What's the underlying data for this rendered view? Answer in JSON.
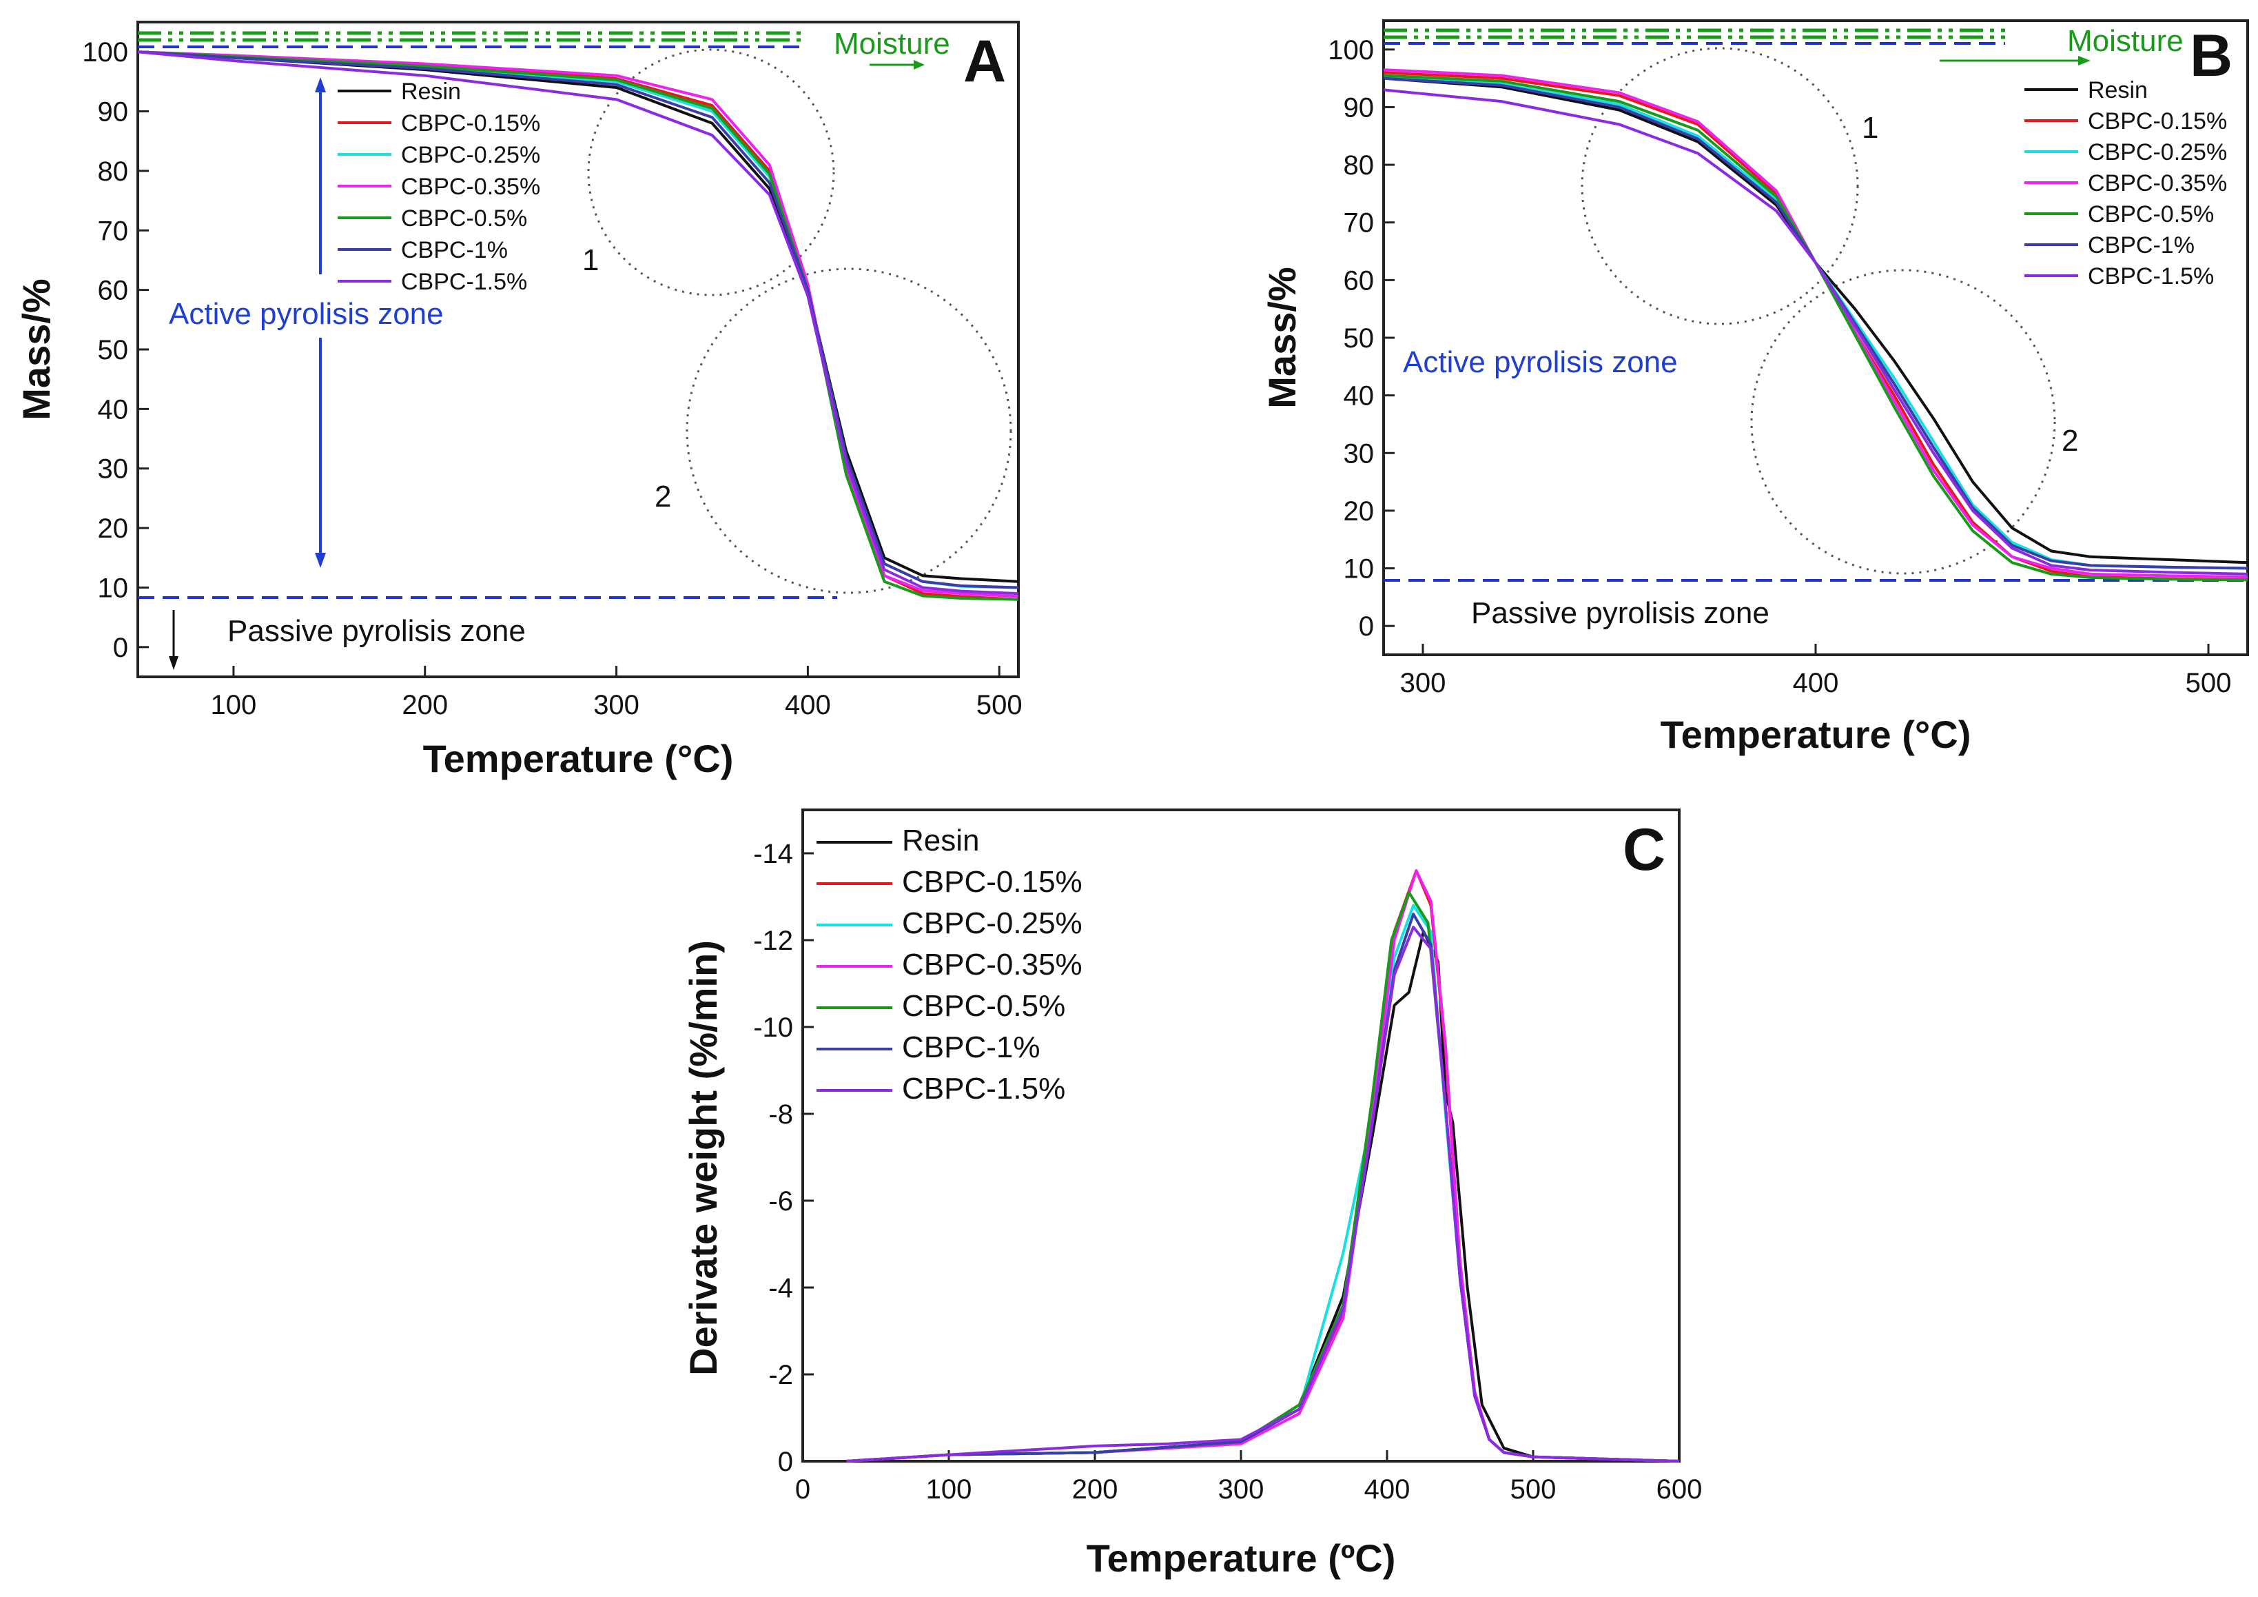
{
  "series_style": [
    {
      "name": "Resin",
      "color": "#111111"
    },
    {
      "name": "CBPC-0.15%",
      "color": "#e41a1c"
    },
    {
      "name": "CBPC-0.25%",
      "color": "#19e0e0"
    },
    {
      "name": "CBPC-0.35%",
      "color": "#ee22ee"
    },
    {
      "name": "CBPC-0.5%",
      "color": "#1a9a1a"
    },
    {
      "name": "CBPC-1%",
      "color": "#3a3fa8"
    },
    {
      "name": "CBPC-1.5%",
      "color": "#8a2be2"
    }
  ],
  "chart_data": [
    {
      "id": "A",
      "type": "line",
      "panel_label": "A",
      "xlabel": "Temperature (°C)",
      "ylabel": "Mass/%",
      "xlim": [
        50,
        510
      ],
      "ylim": [
        -5,
        105
      ],
      "xticks": [
        100,
        200,
        300,
        400,
        500
      ],
      "yticks": [
        0,
        10,
        20,
        30,
        40,
        50,
        60,
        70,
        80,
        90,
        100
      ],
      "legend_position": "top-left",
      "annotations": {
        "moisture": "Moisture",
        "active_zone": "Active pyrolisis zone",
        "passive_zone": "Passive pyrolisis zone",
        "circle_1": "1",
        "circle_2": "2"
      },
      "series": [
        {
          "name": "Resin",
          "x": [
            50,
            100,
            200,
            300,
            350,
            380,
            400,
            420,
            440,
            460,
            480,
            510
          ],
          "y": [
            100,
            99,
            97,
            94,
            88,
            77,
            60,
            33,
            15,
            12,
            11.5,
            11
          ]
        },
        {
          "name": "CBPC-0.15%",
          "x": [
            50,
            100,
            200,
            300,
            350,
            380,
            400,
            420,
            440,
            460,
            480,
            510
          ],
          "y": [
            100,
            99.3,
            97.8,
            95.5,
            91,
            80,
            60,
            30,
            12,
            9,
            8.5,
            8
          ]
        },
        {
          "name": "CBPC-0.25%",
          "x": [
            50,
            100,
            200,
            300,
            350,
            380,
            400,
            420,
            440,
            460,
            480,
            510
          ],
          "y": [
            100,
            99.2,
            97.5,
            95,
            90,
            79,
            60,
            32,
            14,
            11,
            10.2,
            10
          ]
        },
        {
          "name": "CBPC-0.35%",
          "x": [
            50,
            100,
            200,
            300,
            350,
            380,
            400,
            420,
            440,
            460,
            480,
            510
          ],
          "y": [
            100,
            99.4,
            98,
            96,
            92,
            81,
            61,
            30,
            12,
            9.5,
            9,
            8.5
          ]
        },
        {
          "name": "CBPC-0.5%",
          "x": [
            50,
            100,
            200,
            300,
            350,
            380,
            400,
            420,
            440,
            460,
            480,
            510
          ],
          "y": [
            100,
            99.2,
            97.6,
            95.3,
            90.5,
            79.5,
            60,
            29,
            11,
            8.6,
            8.2,
            8
          ]
        },
        {
          "name": "CBPC-1%",
          "x": [
            50,
            100,
            200,
            300,
            350,
            380,
            400,
            420,
            440,
            460,
            480,
            510
          ],
          "y": [
            100,
            99,
            97.2,
            94.5,
            89,
            78,
            60,
            32,
            14,
            11,
            10.3,
            10
          ]
        },
        {
          "name": "CBPC-1.5%",
          "x": [
            50,
            100,
            200,
            300,
            350,
            380,
            400,
            420,
            440,
            460,
            480,
            510
          ],
          "y": [
            100,
            98.5,
            96,
            92,
            86,
            76,
            59,
            31,
            13,
            10,
            9.4,
            9
          ]
        }
      ]
    },
    {
      "id": "B",
      "type": "line",
      "panel_label": "B",
      "xlabel": "Temperature (°C)",
      "ylabel": "Mass/%",
      "xlim": [
        290,
        510
      ],
      "ylim": [
        -5,
        105
      ],
      "xticks": [
        300,
        400,
        500
      ],
      "yticks": [
        0,
        10,
        20,
        30,
        40,
        50,
        60,
        70,
        80,
        90,
        100
      ],
      "legend_position": "top-right",
      "annotations": {
        "moisture": "Moisture",
        "active_zone": "Active pyrolisis zone",
        "passive_zone": "Passive pyrolisis zone",
        "circle_1": "1",
        "circle_2": "2"
      },
      "series": [
        {
          "name": "Resin",
          "x": [
            290,
            320,
            350,
            370,
            390,
            400,
            410,
            420,
            430,
            440,
            450,
            460,
            470,
            490,
            510
          ],
          "y": [
            95,
            93.5,
            89.5,
            84,
            73,
            63,
            55,
            46,
            36,
            25,
            17,
            13,
            12,
            11.5,
            11
          ]
        },
        {
          "name": "CBPC-0.15%",
          "x": [
            290,
            320,
            350,
            370,
            390,
            400,
            410,
            420,
            430,
            440,
            450,
            460,
            470,
            490,
            510
          ],
          "y": [
            96,
            95,
            92,
            87,
            75,
            63,
            51,
            40,
            28,
            18,
            12,
            9.5,
            8.5,
            8.2,
            8
          ]
        },
        {
          "name": "CBPC-0.25%",
          "x": [
            290,
            320,
            350,
            370,
            390,
            400,
            410,
            420,
            430,
            440,
            450,
            460,
            470,
            490,
            510
          ],
          "y": [
            95.5,
            94,
            90.5,
            85,
            74,
            63,
            53,
            43,
            32,
            21,
            14.5,
            11.5,
            10.5,
            10.2,
            10
          ]
        },
        {
          "name": "CBPC-0.35%",
          "x": [
            290,
            320,
            350,
            370,
            390,
            400,
            410,
            420,
            430,
            440,
            450,
            460,
            470,
            490,
            510
          ],
          "y": [
            96.5,
            95.5,
            92.5,
            87.5,
            75.5,
            63,
            51,
            39,
            27,
            17.5,
            12,
            10,
            9,
            8.7,
            8.5
          ]
        },
        {
          "name": "CBPC-0.5%",
          "x": [
            290,
            320,
            350,
            370,
            390,
            400,
            410,
            420,
            430,
            440,
            450,
            460,
            470,
            490,
            510
          ],
          "y": [
            95.5,
            94.5,
            91,
            86,
            74.5,
            63,
            50.5,
            38,
            26,
            16.5,
            11,
            9,
            8.4,
            8.1,
            8
          ]
        },
        {
          "name": "CBPC-1%",
          "x": [
            290,
            320,
            350,
            370,
            390,
            400,
            410,
            420,
            430,
            440,
            450,
            460,
            470,
            490,
            510
          ],
          "y": [
            95,
            93.8,
            90,
            84.5,
            73.5,
            63,
            52.5,
            42,
            31,
            20.5,
            14,
            11.3,
            10.5,
            10.2,
            10
          ]
        },
        {
          "name": "CBPC-1.5%",
          "x": [
            290,
            320,
            350,
            370,
            390,
            400,
            410,
            420,
            430,
            440,
            450,
            460,
            470,
            490,
            510
          ],
          "y": [
            93,
            91,
            87,
            82,
            72,
            63,
            52,
            41,
            30,
            20,
            13.5,
            10.5,
            9.7,
            9.3,
            9
          ]
        }
      ]
    },
    {
      "id": "C",
      "type": "line",
      "panel_label": "C",
      "xlabel": "Temperature (ºC)",
      "ylabel": "Derivate weight (%/min)",
      "xlim": [
        0,
        600
      ],
      "ylim": [
        0,
        -15
      ],
      "xticks": [
        0,
        100,
        200,
        300,
        400,
        500,
        600
      ],
      "yticks": [
        0,
        -2,
        -4,
        -6,
        -8,
        -10,
        -12,
        -14
      ],
      "ytick_labels": [
        "0",
        "-2",
        "-4",
        "-6",
        "-8",
        "-10",
        "-12",
        "-14"
      ],
      "legend_position": "top-left",
      "series": [
        {
          "name": "Resin",
          "x": [
            30,
            100,
            200,
            300,
            340,
            370,
            390,
            405,
            415,
            425,
            435,
            440,
            445,
            455,
            465,
            480,
            500,
            600
          ],
          "y": [
            0,
            -0.15,
            -0.2,
            -0.45,
            -1.3,
            -3.8,
            -7.5,
            -10.5,
            -10.8,
            -12.2,
            -11.5,
            -8.5,
            -7.8,
            -4,
            -1.3,
            -0.3,
            -0.1,
            0
          ]
        },
        {
          "name": "CBPC-0.15%",
          "x": [
            30,
            100,
            200,
            300,
            340,
            370,
            390,
            405,
            420,
            430,
            440,
            450,
            460,
            470,
            480,
            500,
            600
          ],
          "y": [
            0,
            -0.15,
            -0.2,
            -0.45,
            -1.2,
            -3.4,
            -8.2,
            -12.2,
            -13.6,
            -12.8,
            -9.5,
            -4.5,
            -1.6,
            -0.5,
            -0.2,
            -0.1,
            0
          ]
        },
        {
          "name": "CBPC-0.25%",
          "x": [
            30,
            100,
            200,
            300,
            340,
            370,
            390,
            405,
            418,
            430,
            440,
            450,
            460,
            470,
            480,
            500,
            600
          ],
          "y": [
            0,
            -0.15,
            -0.2,
            -0.45,
            -1.2,
            -4.8,
            -8.0,
            -11.6,
            -12.8,
            -12.2,
            -8.0,
            -4.2,
            -1.5,
            -0.5,
            -0.2,
            -0.1,
            0
          ]
        },
        {
          "name": "CBPC-0.35%",
          "x": [
            30,
            100,
            200,
            300,
            340,
            370,
            390,
            405,
            420,
            430,
            440,
            450,
            460,
            470,
            480,
            500,
            600
          ],
          "y": [
            0,
            -0.15,
            -0.2,
            -0.4,
            -1.1,
            -3.3,
            -8.0,
            -12.0,
            -13.6,
            -12.9,
            -9.6,
            -4.6,
            -1.6,
            -0.5,
            -0.2,
            -0.1,
            0
          ]
        },
        {
          "name": "CBPC-0.5%",
          "x": [
            30,
            100,
            200,
            300,
            340,
            370,
            390,
            403,
            415,
            428,
            440,
            450,
            460,
            470,
            480,
            500,
            600
          ],
          "y": [
            0,
            -0.15,
            -0.2,
            -0.45,
            -1.3,
            -3.6,
            -8.4,
            -12.0,
            -13.1,
            -12.4,
            -8.2,
            -4.2,
            -1.5,
            -0.5,
            -0.2,
            -0.1,
            0
          ]
        },
        {
          "name": "CBPC-1%",
          "x": [
            30,
            100,
            200,
            300,
            340,
            370,
            390,
            405,
            418,
            430,
            440,
            450,
            460,
            470,
            480,
            500,
            600
          ],
          "y": [
            0,
            -0.15,
            -0.2,
            -0.45,
            -1.2,
            -3.5,
            -7.8,
            -11.3,
            -12.6,
            -11.9,
            -8.2,
            -4.2,
            -1.5,
            -0.5,
            -0.2,
            -0.1,
            0
          ]
        },
        {
          "name": "CBPC-1.5%",
          "x": [
            30,
            100,
            150,
            200,
            250,
            300,
            340,
            370,
            390,
            405,
            418,
            430,
            440,
            450,
            460,
            470,
            480,
            500,
            600
          ],
          "y": [
            0,
            -0.15,
            -0.25,
            -0.35,
            -0.4,
            -0.5,
            -1.2,
            -3.5,
            -7.8,
            -11.2,
            -12.3,
            -11.8,
            -8.2,
            -4.2,
            -1.5,
            -0.5,
            -0.2,
            -0.1,
            0
          ]
        }
      ]
    }
  ]
}
